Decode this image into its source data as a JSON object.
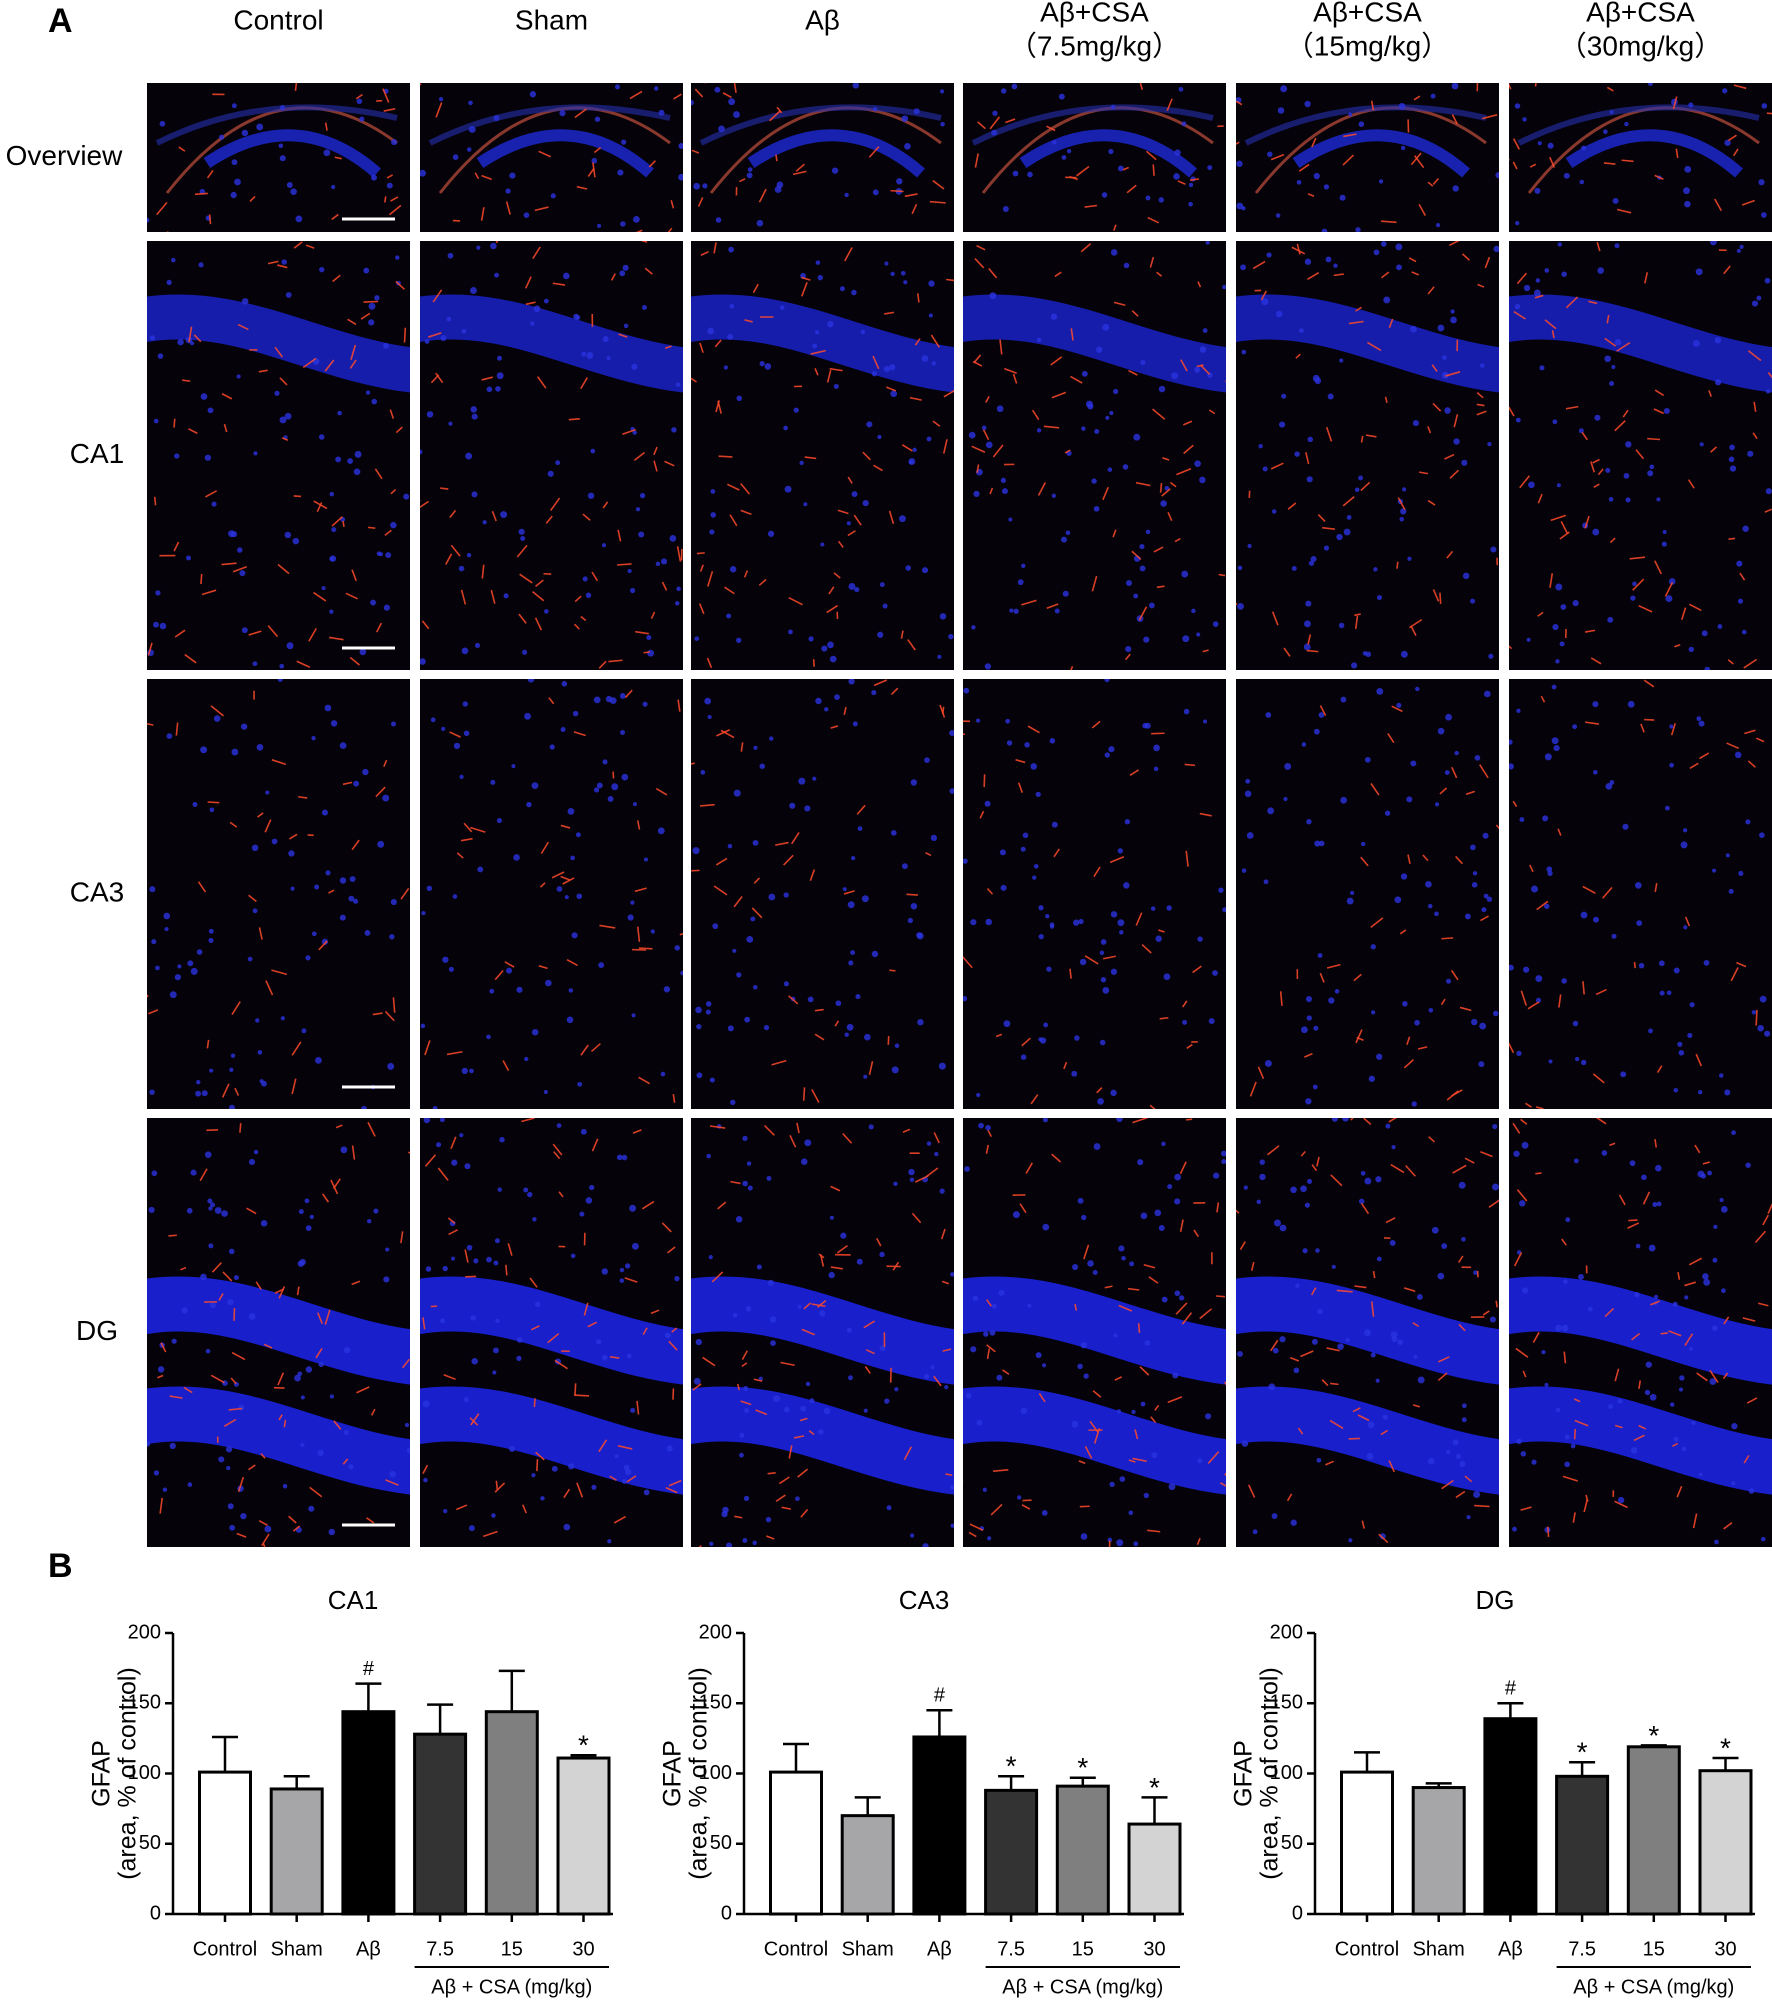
{
  "panel_a": {
    "label": "A",
    "columns": [
      [
        "Control"
      ],
      [
        "Sham"
      ],
      [
        "Aβ"
      ],
      [
        "Aβ+CSA",
        "（7.5mg/kg）"
      ],
      [
        "Aβ+CSA",
        "（15mg/kg）"
      ],
      [
        "Aβ+CSA",
        "（30mg/kg）"
      ]
    ],
    "rows": [
      "Overview",
      "CA1",
      "CA3",
      "DG"
    ]
  },
  "panel_b_label": "B",
  "chart_data": [
    {
      "type": "bar",
      "title": "CA1",
      "ylabel": [
        "GFAP",
        "(area, % of control)"
      ],
      "categories": [
        "Control",
        "Sham",
        "Aβ",
        "7.5",
        "15",
        "30"
      ],
      "values": [
        101,
        89,
        144,
        128,
        144,
        111
      ],
      "errors": [
        25,
        9,
        20,
        21,
        29,
        2
      ],
      "colors": [
        "#ffffff",
        "#a6a6a8",
        "#000000",
        "#333333",
        "#7f7f7f",
        "#d3d3d3"
      ],
      "ylim": [
        0,
        200
      ],
      "yticks": [
        0,
        50,
        100,
        150,
        200
      ],
      "annotations": [
        {
          "index": 2,
          "text": "#"
        },
        {
          "index": 5,
          "text": "*"
        }
      ],
      "group_label": "Aβ + CSA (mg/kg)"
    },
    {
      "type": "bar",
      "title": "CA3",
      "ylabel": [
        "GFAP",
        "(area, % of control)"
      ],
      "categories": [
        "Control",
        "Sham",
        "Aβ",
        "7.5",
        "15",
        "30"
      ],
      "values": [
        101,
        70,
        126,
        88,
        91,
        64
      ],
      "errors": [
        20,
        13,
        19,
        10,
        6,
        19
      ],
      "colors": [
        "#ffffff",
        "#a6a6a8",
        "#000000",
        "#333333",
        "#7f7f7f",
        "#d3d3d3"
      ],
      "ylim": [
        0,
        200
      ],
      "yticks": [
        0,
        50,
        100,
        150,
        200
      ],
      "annotations": [
        {
          "index": 2,
          "text": "#"
        },
        {
          "index": 3,
          "text": "*"
        },
        {
          "index": 4,
          "text": "*"
        },
        {
          "index": 5,
          "text": "*"
        }
      ],
      "group_label": "Aβ + CSA (mg/kg)"
    },
    {
      "type": "bar",
      "title": "DG",
      "ylabel": [
        "GFAP",
        "(area, % of control)"
      ],
      "categories": [
        "Control",
        "Sham",
        "Aβ",
        "7.5",
        "15",
        "30"
      ],
      "values": [
        101,
        90,
        139,
        98,
        119,
        102
      ],
      "errors": [
        14,
        3,
        11,
        10,
        1,
        9
      ],
      "colors": [
        "#ffffff",
        "#a6a6a8",
        "#000000",
        "#333333",
        "#7f7f7f",
        "#d3d3d3"
      ],
      "ylim": [
        0,
        200
      ],
      "yticks": [
        0,
        50,
        100,
        150,
        200
      ],
      "annotations": [
        {
          "index": 2,
          "text": "#"
        },
        {
          "index": 3,
          "text": "*"
        },
        {
          "index": 4,
          "text": "*"
        },
        {
          "index": 5,
          "text": "*"
        }
      ],
      "group_label": "Aβ + CSA (mg/kg)"
    }
  ]
}
